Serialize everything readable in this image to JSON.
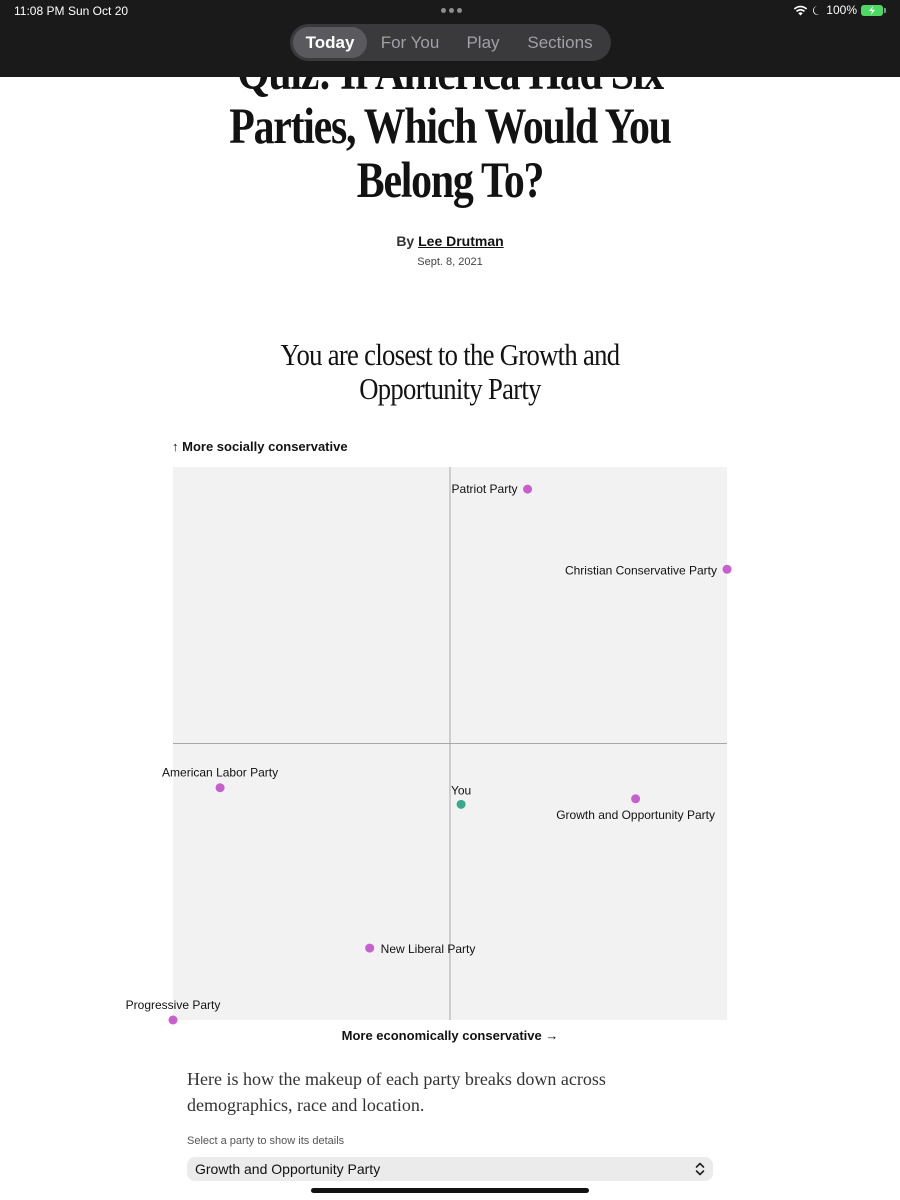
{
  "status_bar": {
    "time": "11:08 PM",
    "date": "Sun Oct 20",
    "battery": "100%"
  },
  "nav": {
    "tabs": [
      {
        "label": "Today",
        "active": true
      },
      {
        "label": "For You",
        "active": false
      },
      {
        "label": "Play",
        "active": false
      },
      {
        "label": "Sections",
        "active": false
      }
    ]
  },
  "article": {
    "title_line1": "Quiz: If America Had Six",
    "title_line2": "Parties, Which Would You",
    "title_line3": "Belong To?",
    "byline_prefix": "By",
    "author": "Lee Drutman",
    "date": "Sept. 8, 2021",
    "result_line1": "You are closest to the Growth and",
    "result_line2": "Opportunity Party"
  },
  "chart_data": {
    "type": "scatter",
    "xlabel": "More economically conservative →",
    "ylabel": "↑ More socially conservative",
    "xlim": [
      -1,
      1
    ],
    "ylim": [
      -1,
      1
    ],
    "grid": false,
    "points": [
      {
        "label": "Patriot Party",
        "x": 0.28,
        "y": 0.92,
        "color": "#c85fce"
      },
      {
        "label": "Christian Conservative Party",
        "x": 1.0,
        "y": 0.63,
        "color": "#c85fce"
      },
      {
        "label": "American Labor Party",
        "x": -0.83,
        "y": -0.16,
        "color": "#c85fce"
      },
      {
        "label": "You",
        "x": 0.04,
        "y": -0.22,
        "color": "#3aa88a"
      },
      {
        "label": "Growth and Opportunity Party",
        "x": 0.67,
        "y": -0.2,
        "color": "#c85fce"
      },
      {
        "label": "New Liberal Party",
        "x": -0.29,
        "y": -0.74,
        "color": "#c85fce"
      },
      {
        "label": "Progressive Party",
        "x": -1.0,
        "y": -1.0,
        "color": "#c85fce"
      }
    ]
  },
  "body_text": "Here is how the makeup of each party breaks down across demographics, race and location.",
  "party_selector": {
    "label": "Select a party to show its details",
    "selected": "Growth and Opportunity Party"
  }
}
